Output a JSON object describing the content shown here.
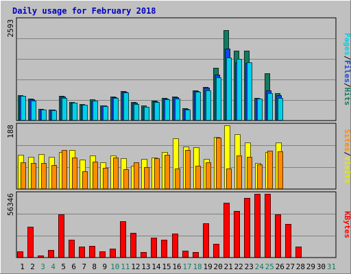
{
  "chart_data": [
    {
      "type": "bar",
      "title": "Daily usage for February 2018",
      "ylabel_parts": [
        {
          "text": "Pages",
          "color": "#00d0e8"
        },
        {
          "text": "/",
          "color": "#000000"
        },
        {
          "text": "Files",
          "color": "#1844e8"
        },
        {
          "text": "/",
          "color": "#000000"
        },
        {
          "text": "Hits",
          "color": "#157a5f"
        }
      ],
      "ymax_label": "2593",
      "ylim": [
        0,
        2593
      ],
      "categories": [
        "1",
        "2",
        "3",
        "4",
        "5",
        "6",
        "7",
        "8",
        "9",
        "10",
        "11",
        "12",
        "13",
        "14",
        "15",
        "16",
        "17",
        "18",
        "19",
        "20",
        "21",
        "22",
        "23",
        "24",
        "25",
        "26",
        "27",
        "28",
        "29",
        "30",
        "31"
      ],
      "series": [
        {
          "name": "Hits",
          "color": "#157a5f",
          "values": [
            660,
            560,
            300,
            290,
            640,
            470,
            430,
            540,
            390,
            620,
            760,
            480,
            380,
            520,
            580,
            620,
            320,
            780,
            860,
            1350,
            2320,
            1800,
            1800,
            590,
            1220,
            700,
            null,
            null,
            null,
            null,
            null
          ]
        },
        {
          "name": "Files",
          "color": "#1844e8",
          "values": [
            640,
            540,
            290,
            280,
            620,
            460,
            410,
            520,
            380,
            600,
            740,
            460,
            360,
            500,
            560,
            600,
            300,
            760,
            840,
            1180,
            1850,
            1500,
            1480,
            570,
            780,
            660,
            null,
            null,
            null,
            null,
            null
          ]
        },
        {
          "name": "Pages",
          "color": "#00d0e8",
          "values": [
            630,
            520,
            280,
            270,
            580,
            450,
            400,
            510,
            370,
            580,
            730,
            430,
            350,
            480,
            550,
            570,
            280,
            740,
            780,
            1110,
            1620,
            1580,
            1500,
            560,
            700,
            590,
            null,
            null,
            null,
            null,
            null
          ]
        }
      ]
    },
    {
      "type": "bar",
      "ylabel_parts": [
        {
          "text": "Sites",
          "color": "#ff8c00"
        },
        {
          "text": "/",
          "color": "#000000"
        },
        {
          "text": "Visits",
          "color": "#e8e800"
        }
      ],
      "ymax_label": "188",
      "ylim": [
        0,
        188
      ],
      "categories": [
        "1",
        "2",
        "3",
        "4",
        "5",
        "6",
        "7",
        "8",
        "9",
        "10",
        "11",
        "12",
        "13",
        "14",
        "15",
        "16",
        "17",
        "18",
        "19",
        "20",
        "21",
        "22",
        "23",
        "24",
        "25",
        "26",
        "27",
        "28",
        "29",
        "30",
        "31"
      ],
      "series": [
        {
          "name": "Visits",
          "color": "#ffff00",
          "values": [
            101,
            96,
            104,
            95,
            110,
            115,
            86,
            100,
            78,
            100,
            90,
            68,
            89,
            94,
            109,
            149,
            126,
            123,
            89,
            153,
            188,
            162,
            137,
            76,
            109,
            138,
            null,
            null,
            null,
            null,
            null
          ]
        },
        {
          "name": "Sites",
          "color": "#ff8c00",
          "values": [
            78,
            76,
            76,
            70,
            115,
            94,
            53,
            81,
            62,
            94,
            59,
            78,
            65,
            90,
            101,
            60,
            115,
            68,
            78,
            152,
            60,
            100,
            95,
            72,
            114,
            111,
            null,
            null,
            null,
            null,
            null
          ]
        }
      ]
    },
    {
      "type": "bar",
      "ylabel_parts": [
        {
          "text": "KBytes",
          "color": "#ff0000"
        }
      ],
      "ymax_label": "56346",
      "ylim": [
        0,
        56346
      ],
      "categories": [
        "1",
        "2",
        "3",
        "4",
        "5",
        "6",
        "7",
        "8",
        "9",
        "10",
        "11",
        "12",
        "13",
        "14",
        "15",
        "16",
        "17",
        "18",
        "19",
        "20",
        "21",
        "22",
        "23",
        "24",
        "25",
        "26",
        "27",
        "28",
        "29",
        "30",
        "31"
      ],
      "series": [
        {
          "name": "KBytes",
          "color": "#ff0000",
          "values": [
            5200,
            27500,
            2000,
            6600,
            37900,
            16000,
            9800,
            10400,
            5300,
            7800,
            32300,
            21700,
            5000,
            17400,
            16000,
            21400,
            5900,
            4900,
            30000,
            12400,
            48200,
            41200,
            52500,
            56346,
            56346,
            38100,
            29900,
            9800,
            null,
            null,
            null
          ]
        }
      ]
    }
  ],
  "x_label_colors": {
    "weekday": "#000000",
    "weekend": "#157a5f",
    "weekend_days": [
      3,
      4,
      10,
      11,
      17,
      18,
      24,
      25,
      31
    ]
  }
}
